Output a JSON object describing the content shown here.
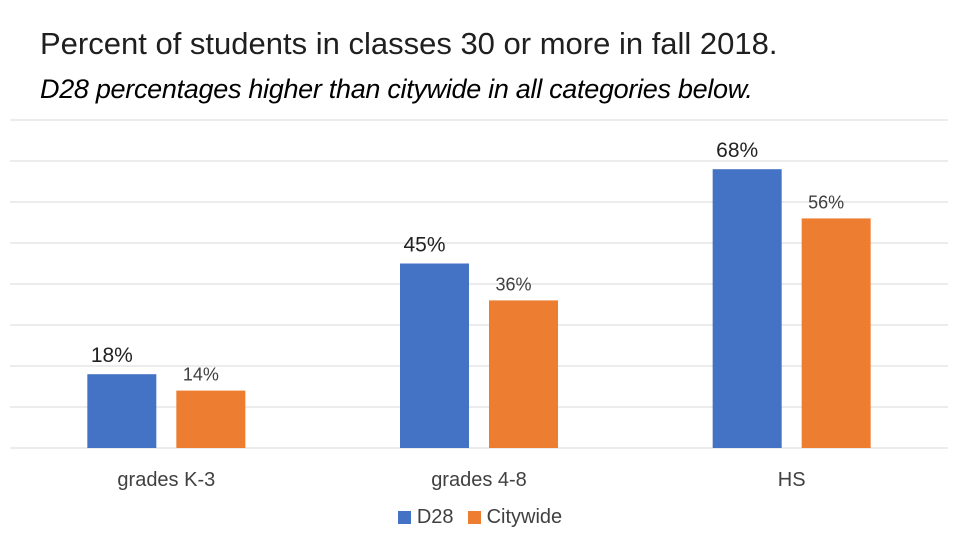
{
  "colors": {
    "d28": "#4472C4",
    "citywide": "#ED7D31",
    "grid": "#D9D9D9",
    "label": "#404040"
  },
  "chart_data": {
    "type": "bar",
    "title": "Percent of students in classes 30 or more in fall 2018.",
    "subtitle": "D28 percentages higher than citywide in all categories below.",
    "categories": [
      "grades K-3",
      "grades 4-8",
      "HS"
    ],
    "series": [
      {
        "name": "D28",
        "values": [
          18,
          45,
          68
        ],
        "labels": [
          "18%",
          "45%",
          "68%"
        ]
      },
      {
        "name": "Citywide",
        "values": [
          14,
          36,
          56
        ],
        "labels": [
          "14%",
          "36%",
          "56%"
        ]
      }
    ],
    "xlabel": "",
    "ylabel": "",
    "ylim": [
      0,
      80
    ],
    "grid": true,
    "legend": "bottom-center"
  }
}
